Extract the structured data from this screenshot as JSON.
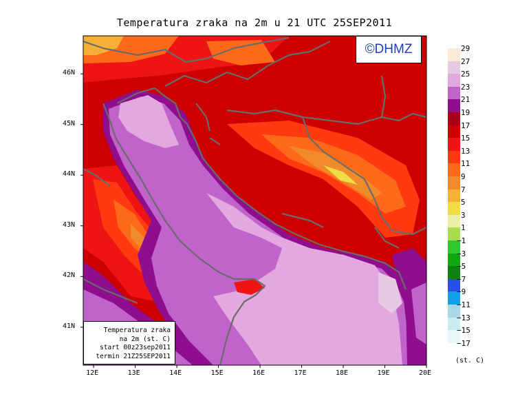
{
  "title": "Temperatura zraka na 2m u 21 UTC 25SEP2011",
  "logo_text": "©DHMZ",
  "info_box": {
    "line1": "Temperatura zraka",
    "line2": "na 2m (st. C)",
    "line3": "start 00z23sep2011",
    "line4": "termin 21Z25SEP2011"
  },
  "map": {
    "lon_labels": [
      "12E",
      "13E",
      "14E",
      "15E",
      "16E",
      "17E",
      "18E",
      "19E",
      "20E"
    ],
    "lat_labels": [
      "46N",
      "45N",
      "44N",
      "43N",
      "42N",
      "41N"
    ],
    "lon_range": [
      11.75,
      20.0
    ],
    "lat_range": [
      40.25,
      46.75
    ]
  },
  "legend": {
    "units": "(st. C)",
    "labels": [
      "29",
      "27",
      "25",
      "23",
      "21",
      "19",
      "17",
      "15",
      "13",
      "11",
      "9",
      "7",
      "5",
      "3",
      "1",
      "−1",
      "−3",
      "−5",
      "−7",
      "−9",
      "−11",
      "−13",
      "−15",
      "−17"
    ],
    "colors": [
      "#fce9d8",
      "#e6c8e2",
      "#e3a8de",
      "#c064cc",
      "#8e0e8e",
      "#a80016",
      "#cc0000",
      "#ee1414",
      "#ff3a10",
      "#ff6a1a",
      "#f08a2a",
      "#f5b035",
      "#f0dc45",
      "#e8f0a8",
      "#a8dc4c",
      "#30c830",
      "#10a810",
      "#108010",
      "#2850e8",
      "#10a0e8",
      "#a8d8e8",
      "#c8ecf0",
      "#e8f8f8"
    ]
  }
}
